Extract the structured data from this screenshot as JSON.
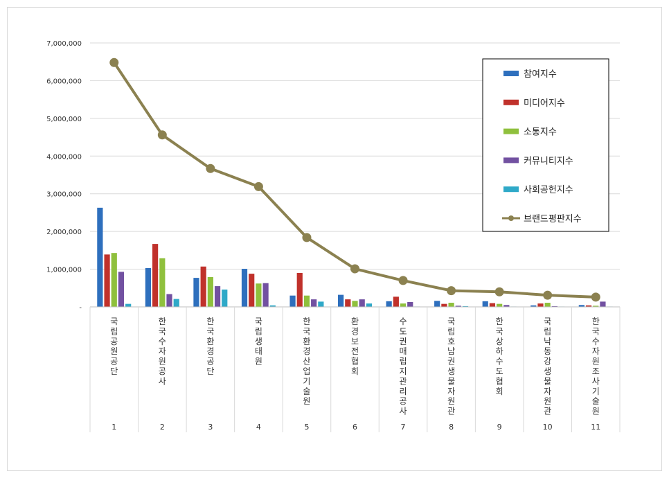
{
  "chart_data": {
    "type": "bar",
    "title": "",
    "ylim": [
      0,
      7000000
    ],
    "yticks": [
      "-",
      "1,000,000",
      "2,000,000",
      "3,000,000",
      "4,000,000",
      "5,000,000",
      "6,000,000",
      "7,000,000"
    ],
    "grid": true,
    "legend_position": "top-right",
    "categories": [
      "국립공원공단",
      "한국수자원공사",
      "한국환경공단",
      "국립생태원",
      "한국환경산업기술원",
      "환경보전협회",
      "수도권매립지관리공사",
      "국립호남권생물자원관",
      "한국상하수도협회",
      "국립낙동강생물자원관",
      "한국수자원조사기술원"
    ],
    "ranks": [
      "1",
      "2",
      "3",
      "4",
      "5",
      "6",
      "7",
      "8",
      "9",
      "10",
      "11"
    ],
    "series": [
      {
        "name": "참여지수",
        "color": "#2e6fbd",
        "values": [
          2630000,
          1030000,
          770000,
          1010000,
          300000,
          320000,
          150000,
          160000,
          150000,
          40000,
          50000
        ]
      },
      {
        "name": "미디어지수",
        "color": "#c0312b",
        "values": [
          1390000,
          1670000,
          1070000,
          880000,
          900000,
          200000,
          270000,
          80000,
          100000,
          90000,
          40000
        ]
      },
      {
        "name": "소통지수",
        "color": "#8fc03d",
        "values": [
          1430000,
          1290000,
          790000,
          620000,
          300000,
          160000,
          90000,
          110000,
          80000,
          110000,
          30000
        ]
      },
      {
        "name": "커뮤니티지수",
        "color": "#7251a1",
        "values": [
          930000,
          340000,
          550000,
          630000,
          200000,
          200000,
          130000,
          30000,
          50000,
          20000,
          140000
        ]
      },
      {
        "name": "사회공헌지수",
        "color": "#2fa9c8",
        "values": [
          80000,
          210000,
          460000,
          40000,
          140000,
          90000,
          10000,
          20000,
          10000,
          10000,
          10000
        ]
      }
    ],
    "line_series": {
      "name": "브랜드평판지수",
      "color": "#8b8150",
      "values": [
        6480000,
        4560000,
        3670000,
        3190000,
        1840000,
        1010000,
        700000,
        430000,
        400000,
        310000,
        260000
      ]
    }
  }
}
